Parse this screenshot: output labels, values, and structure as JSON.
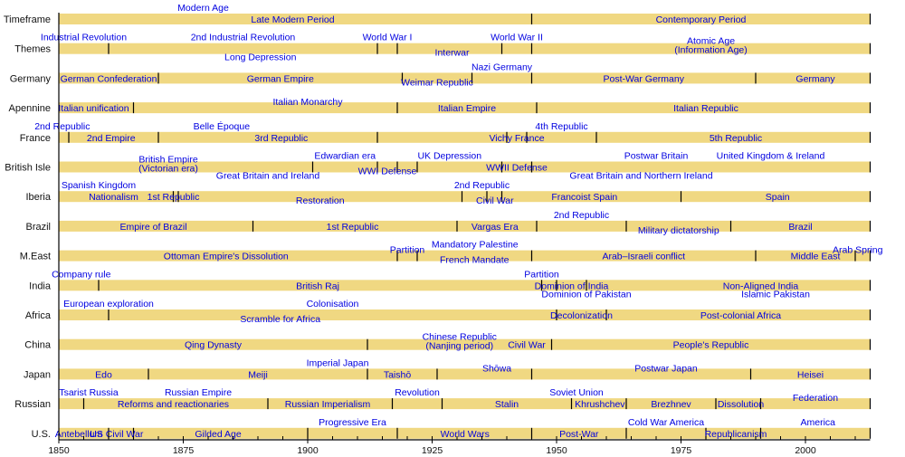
{
  "chart_data": {
    "type": "timeline",
    "xlim": [
      1850,
      2013
    ],
    "x_ticks": [
      1850,
      1875,
      1900,
      1925,
      1950,
      1975,
      2000
    ],
    "minor_tick_step_years": 5,
    "colors": {
      "bar": "#f0d882",
      "label": "#0000e0",
      "separator": "#000000"
    },
    "rows": [
      {
        "name": "Timeframe",
        "separators": [
          1945
        ],
        "labels": [
          {
            "text": "Modern Age",
            "year": 1879,
            "pos": "above"
          },
          {
            "text": "Late Modern Period",
            "year": 1897,
            "pos": "on"
          },
          {
            "text": "Contemporary Period",
            "year": 1979,
            "pos": "on"
          }
        ]
      },
      {
        "name": "Themes",
        "separators": [
          1860,
          1914,
          1918,
          1939,
          1945
        ],
        "labels": [
          {
            "text": "Industrial Revolution",
            "year": 1855,
            "pos": "above"
          },
          {
            "text": "2nd Industrial Revolution",
            "year": 1887,
            "pos": "above"
          },
          {
            "text": "Long Depression",
            "year": 1890.5,
            "pos": "below"
          },
          {
            "text": "World War I",
            "year": 1916,
            "pos": "above"
          },
          {
            "text": "Interwar",
            "year": 1929,
            "pos": "lower"
          },
          {
            "text": "World War II",
            "year": 1942,
            "pos": "above"
          },
          {
            "text": "Atomic Age",
            "text2": "(Information Age)",
            "year": 1981,
            "pos": "two"
          }
        ]
      },
      {
        "name": "Germany",
        "separators": [
          1870,
          1919,
          1933,
          1945,
          1990
        ],
        "labels": [
          {
            "text": "German Confederation",
            "year": 1860,
            "pos": "on"
          },
          {
            "text": "German Empire",
            "year": 1894.5,
            "pos": "on"
          },
          {
            "text": "Weimar Republic",
            "year": 1926,
            "pos": "lower"
          },
          {
            "text": "Nazi Germany",
            "year": 1939,
            "pos": "above"
          },
          {
            "text": "Post-War Germany",
            "year": 1967.5,
            "pos": "on"
          },
          {
            "text": "Germany",
            "year": 2002,
            "pos": "on"
          }
        ]
      },
      {
        "name": "Apennine",
        "separators": [
          1865,
          1918,
          1946
        ],
        "labels": [
          {
            "text": "Italian unification",
            "year": 1857,
            "pos": "on"
          },
          {
            "text": "Italian Monarchy",
            "year": 1900,
            "pos": "higher"
          },
          {
            "text": "Italian Empire",
            "year": 1932,
            "pos": "on"
          },
          {
            "text": "Italian Republic",
            "year": 1980,
            "pos": "on"
          }
        ]
      },
      {
        "name": "France",
        "separators": [
          1852,
          1870,
          1914,
          1940,
          1944,
          1958
        ],
        "labels": [
          {
            "text": "2nd Republic",
            "year": 1850.7,
            "pos": "above"
          },
          {
            "text": "2nd Empire",
            "year": 1860.5,
            "pos": "on"
          },
          {
            "text": "Belle Époque",
            "year": 1882.7,
            "pos": "above"
          },
          {
            "text": "3rd Republic",
            "year": 1894.7,
            "pos": "on"
          },
          {
            "text": "Vichy France",
            "year": 1942,
            "pos": "on"
          },
          {
            "text": "4th Republic",
            "year": 1951,
            "pos": "above"
          },
          {
            "text": "5th Republic",
            "year": 1986,
            "pos": "on"
          }
        ]
      },
      {
        "name": "British Isle",
        "separators": [
          1901,
          1914,
          1918,
          1922,
          1939,
          1945
        ],
        "labels": [
          {
            "text": "British Empire",
            "text2": "(Victorian era)",
            "year": 1872,
            "pos": "two"
          },
          {
            "text": "Edwardian era",
            "year": 1907.5,
            "pos": "above"
          },
          {
            "text": "Great Britain and Ireland",
            "year": 1892,
            "pos": "below"
          },
          {
            "text": "WWI Defense",
            "year": 1916,
            "pos": "lower"
          },
          {
            "text": "UK Depression",
            "year": 1928.5,
            "pos": "above"
          },
          {
            "text": "WWII Defense",
            "year": 1942,
            "pos": "on"
          },
          {
            "text": "Postwar Britain",
            "year": 1970,
            "pos": "above"
          },
          {
            "text": "United Kingdom & Ireland",
            "year": 1993,
            "pos": "above"
          },
          {
            "text": "Great Britain and Northern Ireland",
            "year": 1967,
            "pos": "below"
          }
        ]
      },
      {
        "name": "Iberia",
        "separators": [
          1873,
          1874,
          1931,
          1936,
          1939,
          1975
        ],
        "labels": [
          {
            "text": "Spanish Kingdom",
            "year": 1858,
            "pos": "above"
          },
          {
            "text": "Nationalism",
            "year": 1861,
            "pos": "on"
          },
          {
            "text": "1st Republic",
            "year": 1873,
            "pos": "on"
          },
          {
            "text": "Restoration",
            "year": 1902.5,
            "pos": "lower"
          },
          {
            "text": "2nd Republic",
            "year": 1935,
            "pos": "above"
          },
          {
            "text": "Civil War",
            "year": 1937.6,
            "pos": "lower"
          },
          {
            "text": "Francoist Spain",
            "year": 1955.6,
            "pos": "on"
          },
          {
            "text": "Spain",
            "year": 1994.4,
            "pos": "on"
          }
        ]
      },
      {
        "name": "Brazil",
        "separators": [
          1889,
          1930,
          1946,
          1964,
          1985
        ],
        "labels": [
          {
            "text": "Empire of Brazil",
            "year": 1869,
            "pos": "on"
          },
          {
            "text": "1st Republic",
            "year": 1909,
            "pos": "on"
          },
          {
            "text": "Vargas  Era",
            "year": 1937.6,
            "pos": "on"
          },
          {
            "text": "2nd Republic",
            "year": 1955,
            "pos": "above"
          },
          {
            "text": "Military dictatorship",
            "year": 1974.5,
            "pos": "lower"
          },
          {
            "text": "Brazil",
            "year": 1999,
            "pos": "on"
          }
        ]
      },
      {
        "name": "M.East",
        "separators": [
          1918,
          1922,
          1945,
          1990,
          2010
        ],
        "labels": [
          {
            "text": "Ottoman Empire's  Dissolution",
            "year": 1883.6,
            "pos": "on"
          },
          {
            "text": "Partition",
            "year": 1920,
            "pos": "higher"
          },
          {
            "text": "Mandatory Palestine",
            "year": 1933.6,
            "pos": "above"
          },
          {
            "text": "French Mandate",
            "year": 1933.5,
            "pos": "lower"
          },
          {
            "text": "Arab–Israeli conflict",
            "year": 1967.5,
            "pos": "on"
          },
          {
            "text": "Middle East",
            "year": 2002,
            "pos": "on"
          },
          {
            "text": "Arab Spring",
            "year": 2010.5,
            "pos": "higher"
          }
        ]
      },
      {
        "name": "India",
        "separators": [
          1858,
          1947,
          1950,
          1956
        ],
        "labels": [
          {
            "text": "Company rule",
            "year": 1854.5,
            "pos": "above"
          },
          {
            "text": "British Raj",
            "year": 1902,
            "pos": "on"
          },
          {
            "text": "Partition",
            "year": 1947,
            "pos": "above"
          },
          {
            "text": "Dominion of India",
            "year": 1953,
            "pos": "on"
          },
          {
            "text": "Dominion of Pakistan",
            "year": 1956,
            "pos": "below"
          },
          {
            "text": "Non-Aligned India",
            "year": 1991,
            "pos": "on"
          },
          {
            "text": "Islamic Pakistan",
            "year": 1994,
            "pos": "below"
          }
        ]
      },
      {
        "name": "Africa",
        "separators": [
          1860,
          1950,
          1960
        ],
        "labels": [
          {
            "text": "European exploration",
            "year": 1860,
            "pos": "above"
          },
          {
            "text": "Colonisation",
            "year": 1905,
            "pos": "above"
          },
          {
            "text": "Scramble for Africa",
            "year": 1894.5,
            "pos": "lower"
          },
          {
            "text": "Decolonization",
            "year": 1955,
            "pos": "on"
          },
          {
            "text": "Post-colonial Africa",
            "year": 1987,
            "pos": "on"
          }
        ]
      },
      {
        "name": "China",
        "separators": [
          1912,
          1949
        ],
        "labels": [
          {
            "text": "Qing Dynasty",
            "year": 1881,
            "pos": "on"
          },
          {
            "text": "Chinese Republic",
            "text2": "(Nanjing period)",
            "year": 1930.5,
            "pos": "two"
          },
          {
            "text": "Civil War",
            "year": 1944,
            "pos": "on"
          },
          {
            "text": "People's Republic",
            "year": 1981,
            "pos": "on"
          }
        ]
      },
      {
        "name": "Japan",
        "separators": [
          1868,
          1912,
          1926,
          1945,
          1989
        ],
        "labels": [
          {
            "text": "Edo",
            "year": 1859,
            "pos": "on"
          },
          {
            "text": "Meiji",
            "year": 1890,
            "pos": "on"
          },
          {
            "text": "Imperial Japan",
            "year": 1906,
            "pos": "above"
          },
          {
            "text": "Taishō",
            "year": 1918,
            "pos": "on"
          },
          {
            "text": "Shōwa",
            "year": 1938,
            "pos": "higher"
          },
          {
            "text": "Postwar Japan",
            "year": 1972,
            "pos": "higher"
          },
          {
            "text": "Heisei",
            "year": 2001,
            "pos": "on"
          }
        ]
      },
      {
        "name": "Russian",
        "separators": [
          1855,
          1892,
          1917,
          1927,
          1953,
          1964,
          1982,
          1991
        ],
        "labels": [
          {
            "text": "Tsarist Russia",
            "year": 1856,
            "pos": "above"
          },
          {
            "text": "Russian Empire",
            "year": 1878,
            "pos": "above"
          },
          {
            "text": "Reforms and reactionaries",
            "year": 1873,
            "pos": "on"
          },
          {
            "text": "Russian Imperialism",
            "year": 1904,
            "pos": "on"
          },
          {
            "text": "Revolution",
            "year": 1922,
            "pos": "above"
          },
          {
            "text": "Stalin",
            "year": 1940,
            "pos": "on"
          },
          {
            "text": "Soviet Union",
            "year": 1954,
            "pos": "above"
          },
          {
            "text": "Khrushchev",
            "year": 1958.7,
            "pos": "on"
          },
          {
            "text": "Brezhnev",
            "year": 1973,
            "pos": "on"
          },
          {
            "text": "Dissolution",
            "year": 1987,
            "pos": "on"
          },
          {
            "text": "Federation",
            "year": 2002,
            "pos": "higher"
          }
        ]
      },
      {
        "name": "U.S.",
        "separators": [
          1860,
          1865,
          1900,
          1918,
          1945,
          1964,
          1980,
          1991
        ],
        "labels": [
          {
            "text": "Antebellum",
            "year": 1854,
            "pos": "on"
          },
          {
            "text": "US Civil War",
            "year": 1861.6,
            "pos": "on"
          },
          {
            "text": "Gilded Age",
            "year": 1882,
            "pos": "on"
          },
          {
            "text": "Progressive Era",
            "year": 1909,
            "pos": "above"
          },
          {
            "text": "World Wars",
            "year": 1931.6,
            "pos": "on"
          },
          {
            "text": "Post-War",
            "year": 1954.5,
            "pos": "on"
          },
          {
            "text": "Cold War America",
            "year": 1972,
            "pos": "above"
          },
          {
            "text": "Republicanism",
            "year": 1986,
            "pos": "on"
          },
          {
            "text": "America",
            "year": 2002.5,
            "pos": "above"
          }
        ]
      }
    ]
  }
}
